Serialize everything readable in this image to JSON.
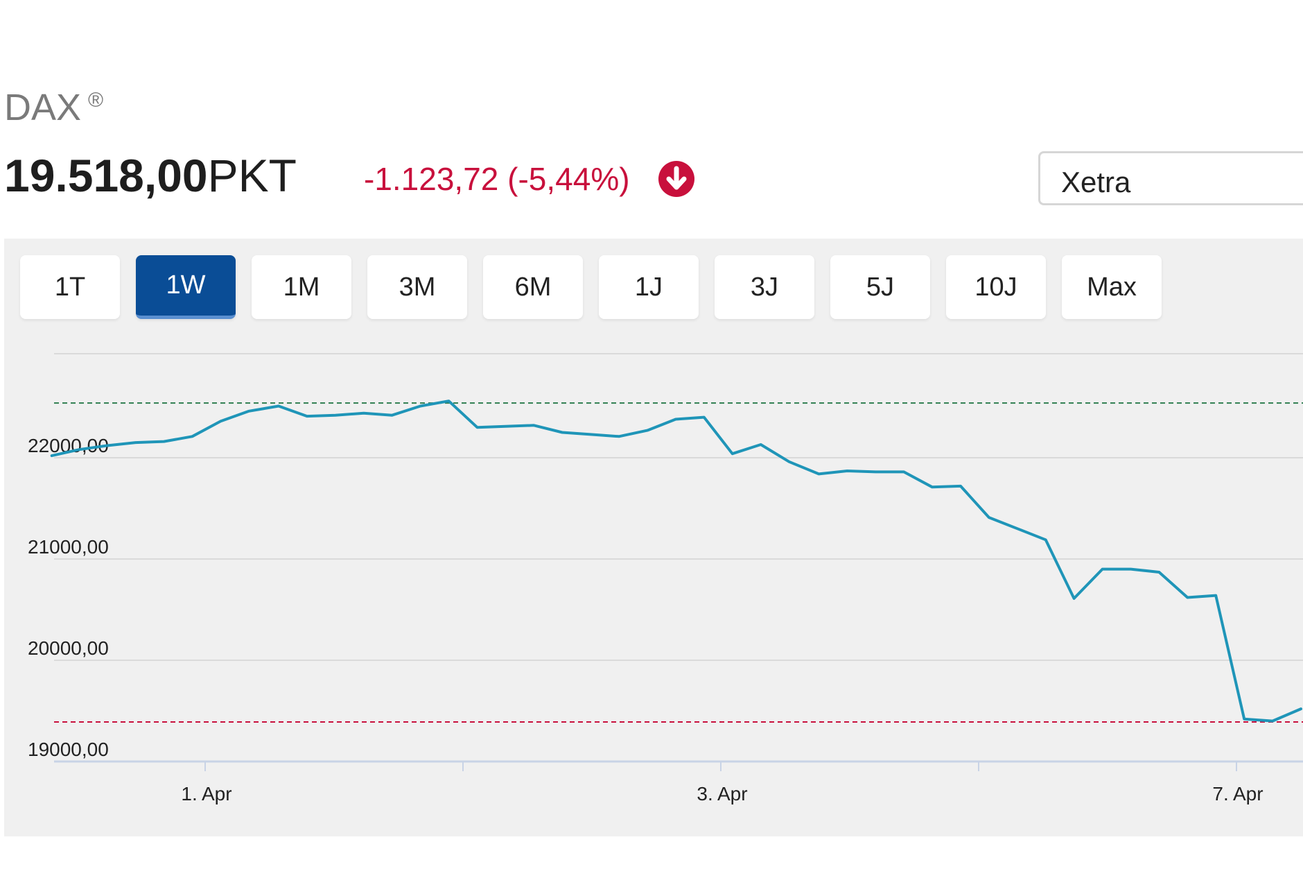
{
  "header": {
    "index_name": "DAX",
    "registered_mark": "®",
    "price_value": "19.518,00",
    "price_unit": "PKT",
    "change_text": "-1.123,72 (-5,44%)",
    "change_icon": "arrow-down-circle-icon",
    "change_color": "#c8103c"
  },
  "exchange_select": {
    "value": "Xetra"
  },
  "range_tabs": [
    {
      "label": "1T",
      "active": false
    },
    {
      "label": "1W",
      "active": true
    },
    {
      "label": "1M",
      "active": false
    },
    {
      "label": "3M",
      "active": false
    },
    {
      "label": "6M",
      "active": false
    },
    {
      "label": "1J",
      "active": false
    },
    {
      "label": "3J",
      "active": false
    },
    {
      "label": "5J",
      "active": false
    },
    {
      "label": "10J",
      "active": false
    },
    {
      "label": "Max",
      "active": false
    }
  ],
  "chart_data": {
    "type": "line",
    "title": "",
    "xlabel": "",
    "ylabel": "",
    "ylim": [
      19000,
      23000
    ],
    "yticks": [
      19000,
      20000,
      21000,
      22000
    ],
    "ytick_labels": [
      "19000,00",
      "20000,00",
      "21000,00",
      "22000,00"
    ],
    "xlim": [
      0,
      11.3
    ],
    "x_axis_unit": "half-day (4 hours) index starting 31. Mar 12:00",
    "xticks": [
      {
        "pos": 0,
        "label": "1. Apr"
      },
      {
        "pos": 2,
        "label": ""
      },
      {
        "pos": 4,
        "label": "3. Apr"
      },
      {
        "pos": 6,
        "label": ""
      },
      {
        "pos": 8,
        "label": "7. Apr"
      }
    ],
    "reference_lines": [
      {
        "name": "high",
        "value": 22540,
        "color": "#2e7d4f",
        "style": "dashed"
      },
      {
        "name": "low",
        "value": 19390,
        "color": "#c8103c",
        "style": "dashed"
      }
    ],
    "line_color": "#1f95b8",
    "series": [
      {
        "name": "",
        "x": [
          -1.19,
          -0.98,
          -0.76,
          -0.54,
          -0.32,
          -0.1,
          0.12,
          0.34,
          0.57,
          0.79,
          1.01,
          1.23,
          1.45,
          1.67,
          1.89,
          2.11,
          2.33,
          2.55,
          2.77,
          2.99,
          3.21,
          3.43,
          3.65,
          3.87,
          4.09,
          4.31,
          4.53,
          4.76,
          4.98,
          5.2,
          5.42,
          5.64,
          5.86,
          6.08,
          6.3,
          6.52,
          6.74,
          6.96,
          7.18,
          7.4,
          7.62,
          7.84,
          8.06,
          8.28,
          8.5
        ],
        "y": [
          22020,
          22080,
          22120,
          22150,
          22160,
          22210,
          22360,
          22460,
          22510,
          22410,
          22420,
          22440,
          22420,
          22510,
          22560,
          22300,
          22310,
          22320,
          22250,
          22230,
          22210,
          22270,
          22380,
          22400,
          22040,
          22130,
          21960,
          21840,
          21870,
          21860,
          21860,
          21710,
          21720,
          21410,
          21300,
          21190,
          20610,
          20900,
          20900,
          20870,
          20620,
          20640,
          19420,
          19400,
          19520
        ]
      }
    ]
  }
}
